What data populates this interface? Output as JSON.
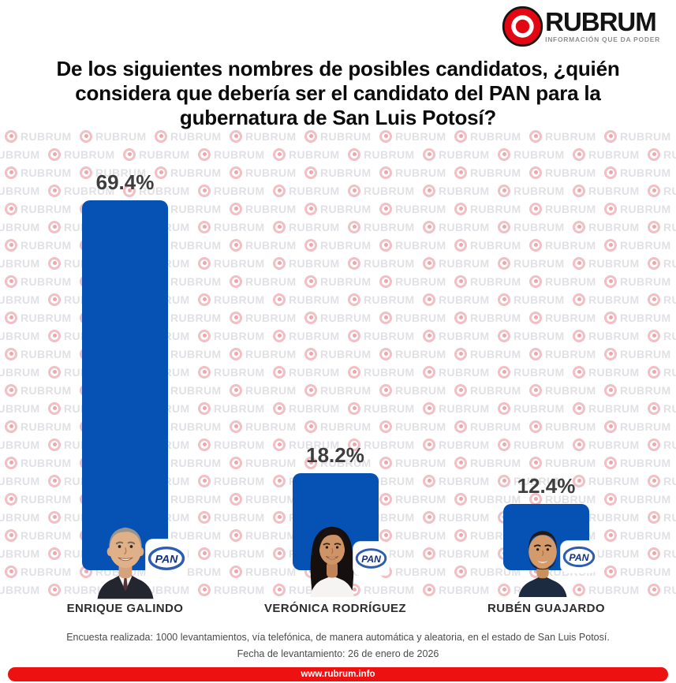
{
  "header": {
    "brand": "RUBRUM",
    "tagline": "INFORMACIÓN QUE DA PODER"
  },
  "question_lines": [
    "De los siguientes nombres de posibles candidatos, ¿quién",
    "considera que debería ser el candidato del PAN para la",
    "gubernatura de San Luis Potosí?"
  ],
  "watermark_text": "RUBRUM",
  "chart_data": {
    "type": "bar",
    "title": "De los siguientes nombres de posibles candidatos, ¿quién considera que debería ser el candidato del PAN para la gubernatura de San Luis Potosí?",
    "categories": [
      "ENRIQUE GALINDO",
      "VERÓNICA RODRÍGUEZ",
      "RUBÉN GUAJARDO"
    ],
    "values": [
      69.4,
      18.2,
      12.4
    ],
    "value_labels": [
      "69.4%",
      "18.2%",
      "12.4%"
    ],
    "party": "PAN",
    "bar_color": "#0551b4",
    "ylim": [
      0,
      100
    ],
    "grid": false,
    "legend": false
  },
  "candidates": [
    {
      "name": "ENRIQUE GALINDO",
      "value": 69.4,
      "label": "69.4%",
      "party": "PAN",
      "avatar": "older-man-gray-hair"
    },
    {
      "name": "VERÓNICA RODRÍGUEZ",
      "value": 18.2,
      "label": "18.2%",
      "party": "PAN",
      "avatar": "woman-long-dark-hair"
    },
    {
      "name": "RUBÉN GUAJARDO",
      "value": 12.4,
      "label": "12.4%",
      "party": "PAN",
      "avatar": "man-beard"
    }
  ],
  "footer": {
    "methodology": "Encuesta realizada: 1000 levantamientos, vía telefónica, de manera automática y aleatoria, en el estado de San Luis Potosí.",
    "date_line": "Fecha de levantamiento: 26 de enero de 2026",
    "website": "www.rubrum.info"
  },
  "colors": {
    "bar_blue": "#0551b4",
    "brand_red": "#e30613",
    "footer_red": "#ee1111",
    "pan_blue": "#15317d"
  }
}
